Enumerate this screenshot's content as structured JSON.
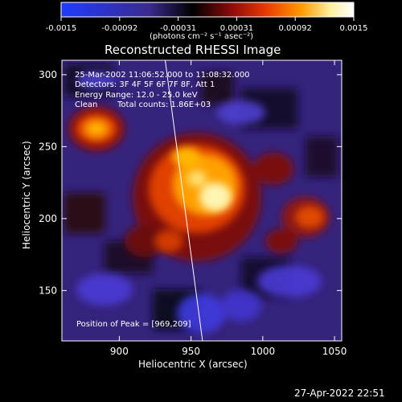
{
  "colorbar": {
    "tick_labels": [
      "-0.0015",
      "-0.00092",
      "-0.00031",
      "0.00031",
      "0.00092",
      "0.0015"
    ],
    "units": "(photons cm⁻² s⁻¹ asec⁻²)",
    "colors": [
      "#1e3cff",
      "#3b2a8a",
      "#000000",
      "#a01010",
      "#e84400",
      "#ffb000",
      "#fff2a0",
      "#ffffff"
    ]
  },
  "image": {
    "title": "Reconstructed RHESSI Image",
    "overlay": {
      "time_range": "25-Mar-2002 11:06:52.000 to 11:08:32.000",
      "detectors": "Detectors: 3F 4F 5F 6F 7F 8F, Att 1",
      "energy": "Energy Range: 12.0 - 25.0 keV",
      "algorithm": "Clean",
      "counts": "Total counts: 1.86E+03",
      "peak": "Position of Peak = [969,209]"
    },
    "peak_x": 969,
    "peak_y": 209,
    "xlabel": "Heliocentric X (arcsec)",
    "ylabel": "Heliocentric Y (arcsec)",
    "x_ticks": [
      "900",
      "950",
      "1000",
      "1050"
    ],
    "y_ticks": [
      "300",
      "250",
      "200",
      "150"
    ],
    "xlim": [
      860,
      1055
    ],
    "ylim": [
      115,
      310
    ],
    "limb_line": {
      "x1": 932,
      "y1": 310,
      "x2": 958,
      "y2": 115
    }
  },
  "footer": {
    "timestamp": "27-Apr-2022 22:51"
  }
}
